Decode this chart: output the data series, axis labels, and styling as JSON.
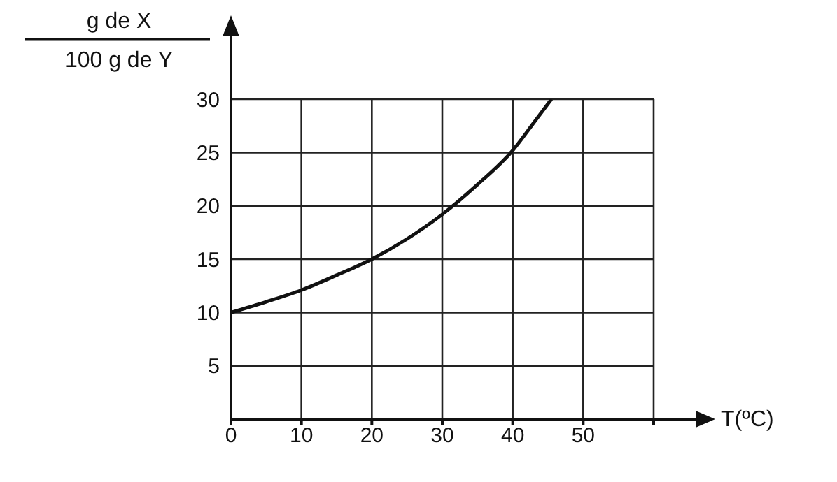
{
  "chart_data": {
    "type": "line",
    "ylabel": "g de X\n100 g de Y",
    "xlabel": "T(ºC)",
    "series": [
      {
        "color": "#111111",
        "x": [
          0,
          5,
          10,
          15,
          20,
          25,
          30,
          35,
          40,
          43,
          45.5
        ],
        "values": [
          10,
          11,
          12.1,
          13.5,
          15,
          16.9,
          19.2,
          22,
          25.2,
          27.8,
          30
        ]
      }
    ],
    "xlim": [
      0,
      60
    ],
    "xticks": [
      {
        "value": 0,
        "label": "0"
      },
      10,
      20,
      30,
      40,
      50,
      {
        "value": 60,
        "label": null
      }
    ],
    "ylim": [
      0,
      30
    ],
    "yticks": [
      5,
      10,
      15,
      20,
      25,
      30
    ],
    "grid": true,
    "line_style": "solid"
  }
}
